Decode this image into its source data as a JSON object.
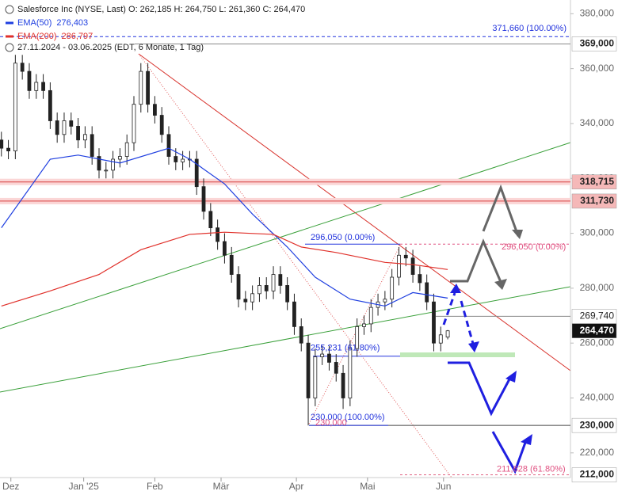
{
  "chart_data": {
    "type": "candlestick",
    "title": "Salesforce Inc (NYSE, Last)",
    "quote": [
      "O: 262,185",
      "H: 264,750",
      "L: 261,360",
      "C: 264,470"
    ],
    "period": "27.11.2024 - 03.06.2025",
    "period_note": "(EDT, 6 Monate, 1 Tag)",
    "open": [
      334,
      331,
      330,
      362,
      359,
      352,
      355,
      352,
      341,
      336,
      341,
      339,
      334,
      336,
      328,
      323,
      323,
      327,
      328,
      333,
      347,
      359,
      347,
      343,
      336,
      328,
      326,
      327,
      327,
      317,
      308,
      302,
      297,
      292,
      285,
      276,
      275,
      278,
      281,
      279,
      285,
      281,
      275,
      266,
      260,
      240,
      255,
      256,
      253,
      249,
      240,
      258,
      266,
      267,
      273,
      275,
      276,
      284,
      292,
      291,
      285,
      282,
      275,
      260,
      262.185
    ],
    "high": [
      337,
      334,
      365,
      365,
      362,
      358,
      358,
      355,
      344,
      344,
      344,
      342,
      339,
      339,
      331,
      326,
      330,
      331,
      336,
      350,
      362,
      362,
      350,
      346,
      339,
      331,
      330,
      330,
      330,
      320,
      311,
      305,
      300,
      295,
      288,
      279,
      281,
      284,
      284,
      288,
      288,
      284,
      278,
      269,
      263,
      258,
      259,
      259,
      256,
      252,
      261,
      269,
      270,
      276,
      278,
      279,
      287,
      295,
      295,
      294,
      288,
      285,
      278,
      266,
      264.75
    ],
    "low": [
      328,
      327,
      327,
      356,
      349,
      349,
      349,
      338,
      333,
      333,
      336,
      331,
      331,
      325,
      320,
      320,
      320,
      324,
      325,
      330,
      344,
      344,
      340,
      333,
      325,
      323,
      323,
      324,
      314,
      305,
      299,
      294,
      289,
      282,
      273,
      272,
      272,
      275,
      276,
      276,
      278,
      272,
      263,
      257,
      230,
      237,
      252,
      250,
      246,
      236,
      237,
      255,
      263,
      264,
      270,
      272,
      273,
      281,
      288,
      282,
      279,
      272,
      257,
      257,
      261.36
    ],
    "close": [
      331,
      330,
      362,
      359,
      352,
      355,
      352,
      341,
      336,
      341,
      339,
      334,
      336,
      328,
      323,
      323,
      327,
      328,
      333,
      347,
      359,
      347,
      343,
      336,
      328,
      326,
      327,
      327,
      317,
      308,
      302,
      297,
      292,
      285,
      276,
      275,
      278,
      281,
      279,
      285,
      281,
      275,
      266,
      260,
      240,
      255,
      256,
      253,
      249,
      240,
      258,
      266,
      267,
      273,
      275,
      276,
      284,
      292,
      291,
      285,
      282,
      275,
      260,
      263,
      264.47
    ],
    "up_color": "#ffffff",
    "down_color": "#222222",
    "series": [
      {
        "name": "EMA(50)",
        "value_label": "276,403",
        "color": "#1f3fe0",
        "x": [
          0,
          7,
          11,
          17,
          24,
          27,
          32,
          36,
          41,
          45,
          50,
          55,
          59,
          64
        ],
        "values": [
          302,
          327,
          328.5,
          325.6,
          331,
          327,
          318,
          307,
          295,
          284,
          276,
          273.5,
          278.4,
          276.403
        ]
      },
      {
        "name": "EMA(200)",
        "value_label": "286,797",
        "color": "#e0302a",
        "x": [
          0,
          7,
          14,
          20,
          27,
          32,
          39,
          43,
          48,
          55,
          59,
          64
        ],
        "values": [
          273.5,
          279,
          285,
          294,
          299.6,
          300.4,
          299.6,
          295,
          293,
          289.4,
          288.6,
          286.797
        ]
      }
    ],
    "levels": [
      {
        "value": 369,
        "label": "369,000"
      },
      {
        "value": 318.715,
        "label": "318,715"
      },
      {
        "value": 311.73,
        "label": "311,730"
      },
      {
        "value": 269.74,
        "label": "269,740"
      },
      {
        "value": 264.47,
        "label": "264,470"
      },
      {
        "value": 230,
        "label": "230,000"
      },
      {
        "value": 212,
        "label": "212,000"
      }
    ],
    "fibs": [
      {
        "value": 371.66,
        "label": "371,660 (100.00%)"
      },
      {
        "value": 296.05,
        "label": "296,050 (0.00%)"
      },
      {
        "value": 255.231,
        "label": "255,231 (61.80%)"
      },
      {
        "value": 230,
        "label": "230,000 (100.00%)"
      },
      {
        "value": 230,
        "label": "230,000"
      },
      {
        "value": 296.05,
        "label": "296,050 (0.00%)"
      },
      {
        "value": 211.628,
        "label": "211,628 (61.80%)"
      }
    ],
    "xlim": [
      -0.2,
      81.6
    ],
    "ylim": [
      211,
      385
    ],
    "yticks": [
      {
        "value": 380,
        "label": "380,000"
      },
      {
        "value": 360,
        "label": "360,000"
      },
      {
        "value": 340,
        "label": "340,000"
      },
      {
        "value": 320,
        "label": "320,000"
      },
      {
        "value": 300,
        "label": "300,000"
      },
      {
        "value": 280,
        "label": "280,000"
      },
      {
        "value": 260,
        "label": "260,000"
      },
      {
        "value": 240,
        "label": "240,000"
      },
      {
        "value": 220,
        "label": "220,000"
      }
    ],
    "xticks": [
      {
        "value": 1.36,
        "label": "Dez"
      },
      {
        "value": 11.8,
        "label": "Jan '25"
      },
      {
        "value": 22,
        "label": "Feb"
      },
      {
        "value": 31.5,
        "label": "Mär"
      },
      {
        "value": 42.3,
        "label": "Apr"
      },
      {
        "value": 52.5,
        "label": "Mai"
      },
      {
        "value": 63.4,
        "label": "Jun"
      }
    ]
  }
}
